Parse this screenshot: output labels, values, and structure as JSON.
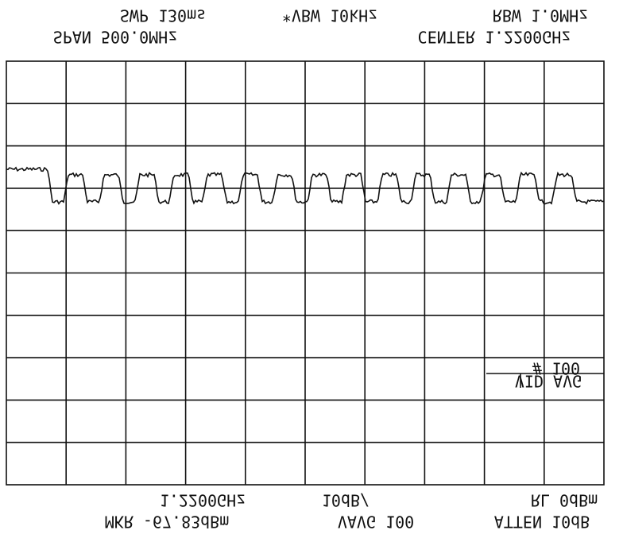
{
  "header": {
    "sweep": "SWP 130ms",
    "vbw": "*VBW 10kHz",
    "rbw": "RBW 1.0MHz",
    "span": "SPAN 500.0MHz",
    "center": "CENTER 1.2200GHz"
  },
  "display": {
    "vid_avg": "VID AVG",
    "avg_count": "# 100"
  },
  "footer": {
    "marker_freq": "1.2200GHz",
    "scale": "10dB/",
    "ref_level": "RL 0dBm",
    "marker_level": "MKR -67.83dBm",
    "vavg": "VAVG 100",
    "atten": "ATTEN 10dB"
  }
}
